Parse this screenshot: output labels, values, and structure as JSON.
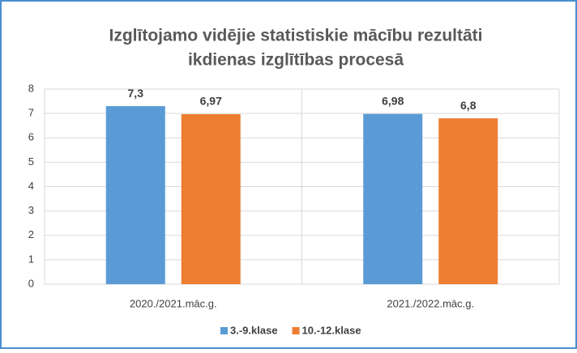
{
  "chart_data": {
    "type": "bar",
    "title": [
      "Izglītojamo vidējie statistiskie mācību rezultāti",
      "ikdienas izglītības procesā"
    ],
    "categories": [
      "2020./2021.māc.g.",
      "2021./2022.māc.g."
    ],
    "series": [
      {
        "name": "3.-9.klase",
        "color": "#5b9bd5",
        "values": [
          7.3,
          6.98
        ],
        "value_labels": [
          "7,3",
          "6,98"
        ]
      },
      {
        "name": "10.-12.klase",
        "color": "#ed7d31",
        "values": [
          6.97,
          6.8
        ],
        "value_labels": [
          "6,97",
          "6,8"
        ]
      }
    ],
    "ylim": [
      0,
      8
    ],
    "yticks": [
      0,
      1,
      2,
      3,
      4,
      5,
      6,
      7,
      8
    ],
    "grid": true,
    "legend": "bottom"
  }
}
